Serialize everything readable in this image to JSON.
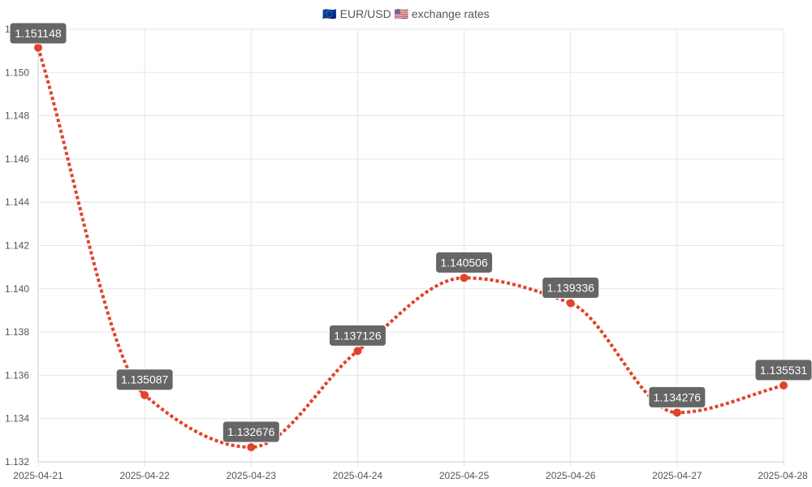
{
  "chart_data": {
    "type": "line",
    "title": "🇪🇺 EUR/USD 🇺🇸 exchange rates",
    "categories": [
      "2025-04-21",
      "2025-04-22",
      "2025-04-23",
      "2025-04-24",
      "2025-04-25",
      "2025-04-26",
      "2025-04-27",
      "2025-04-28"
    ],
    "series": [
      {
        "values": [
          1.151148,
          1.135087,
          1.132676,
          1.137126,
          1.140506,
          1.139336,
          1.134276,
          1.135531
        ],
        "labels": [
          "1.151148",
          "1.135087",
          "1.132676",
          "1.137126",
          "1.140506",
          "1.139336",
          "1.134276",
          "1.135531"
        ]
      }
    ],
    "y_ticks": [
      "1.132",
      "1.134",
      "1.136",
      "1.138",
      "1.140",
      "1.142",
      "1.144",
      "1.146",
      "1.148",
      "1.150",
      "1.152"
    ],
    "ylim": [
      1.132,
      1.152
    ],
    "grid": true,
    "line_style": "dotted",
    "colors": {
      "line": "#e0442a",
      "point": "#e0442a",
      "label_bg": "#666666",
      "label_text": "#ffffff",
      "grid": "#e5e5e5",
      "axis_text": "#555555"
    }
  }
}
